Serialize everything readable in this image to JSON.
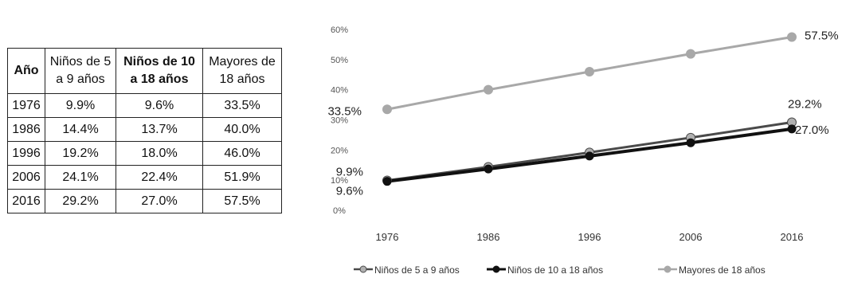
{
  "table": {
    "headers": [
      {
        "text": "Año",
        "bold": true
      },
      {
        "text": "Niños de 5 a 9 años",
        "bold": false
      },
      {
        "text": "Niños de 10 a 18 años",
        "bold": true
      },
      {
        "text": "Mayores de 18 años",
        "bold": false
      }
    ],
    "rows": [
      [
        "1976",
        "9.9%",
        "9.6%",
        "33.5%"
      ],
      [
        "1986",
        "14.4%",
        "13.7%",
        "40.0%"
      ],
      [
        "1996",
        "19.2%",
        "18.0%",
        "46.0%"
      ],
      [
        "2006",
        "24.1%",
        "22.4%",
        "51.9%"
      ],
      [
        "2016",
        "29.2%",
        "27.0%",
        "57.5%"
      ]
    ]
  },
  "chart_data": {
    "type": "line",
    "x": [
      "1976",
      "1986",
      "1996",
      "2006",
      "2016"
    ],
    "yticks": [
      "0%",
      "10%",
      "20%",
      "30%",
      "40%",
      "50%",
      "60%"
    ],
    "ylim": [
      0,
      60
    ],
    "grid": false,
    "legend_position": "bottom",
    "series": [
      {
        "name": "Niños de 5 a 9 años",
        "values": [
          9.9,
          14.4,
          19.2,
          24.1,
          29.2
        ],
        "color": "#b0b0b0",
        "stroke": "#4a4a4a"
      },
      {
        "name": "Niños de 10 a 18 años",
        "values": [
          9.6,
          13.7,
          18.0,
          22.4,
          27.0
        ],
        "color": "#111111",
        "stroke": "#111111"
      },
      {
        "name": "Mayores de 18 años",
        "values": [
          33.5,
          40.0,
          46.0,
          51.9,
          57.5
        ],
        "color": "#a8a8a8",
        "stroke": "#a8a8a8"
      }
    ],
    "data_labels": [
      {
        "text": "33.5%",
        "series": 2,
        "point": 0
      },
      {
        "text": "57.5%",
        "series": 2,
        "point": 4
      },
      {
        "text": "9.9%",
        "series": 0,
        "point": 0
      },
      {
        "text": "9.6%",
        "series": 1,
        "point": 0
      },
      {
        "text": "29.2%",
        "series": 0,
        "point": 4
      },
      {
        "text": "27.0%",
        "series": 1,
        "point": 4
      }
    ]
  }
}
